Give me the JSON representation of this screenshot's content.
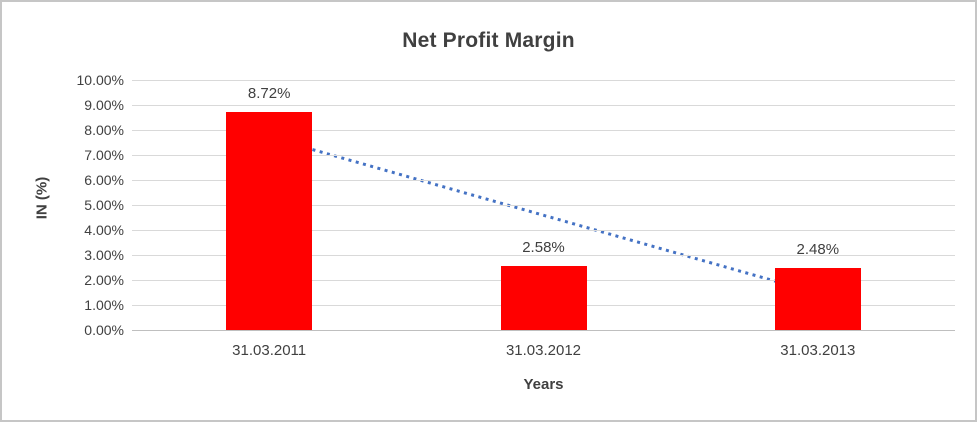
{
  "frame": {
    "background": "#ffffff",
    "border_color": "#c6c6c6"
  },
  "chart_data": {
    "type": "bar",
    "title": "Net Profit Margin",
    "xlabel": "Years",
    "ylabel": "IN (%)",
    "categories": [
      "31.03.2011",
      "31.03.2012",
      "31.03.2013"
    ],
    "values": [
      8.72,
      2.58,
      2.48
    ],
    "data_labels": [
      "8.72%",
      "2.58%",
      "2.48%"
    ],
    "ylim": [
      0,
      10
    ],
    "ytick_step": 1,
    "ytick_labels": [
      "0.00%",
      "1.00%",
      "2.00%",
      "3.00%",
      "4.00%",
      "5.00%",
      "6.00%",
      "7.00%",
      "8.00%",
      "9.00%",
      "10.00%"
    ],
    "grid": true,
    "legend": "none",
    "bar_color": "#ff0000",
    "text_color": "#404040",
    "gridline_color": "#d9d9d9",
    "trendline": {
      "type": "linear",
      "style": "dotted",
      "color": "#4472c4",
      "start_value": 7.71,
      "end_value": 1.47
    }
  }
}
